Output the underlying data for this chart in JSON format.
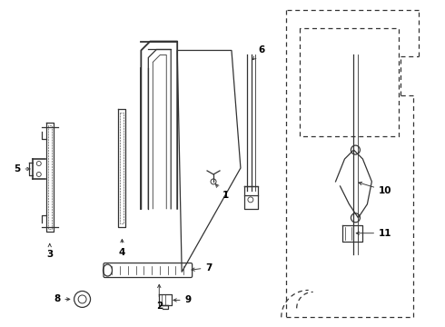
{
  "bg_color": "#ffffff",
  "line_color": "#333333",
  "label_color": "#000000",
  "lw": 0.9
}
